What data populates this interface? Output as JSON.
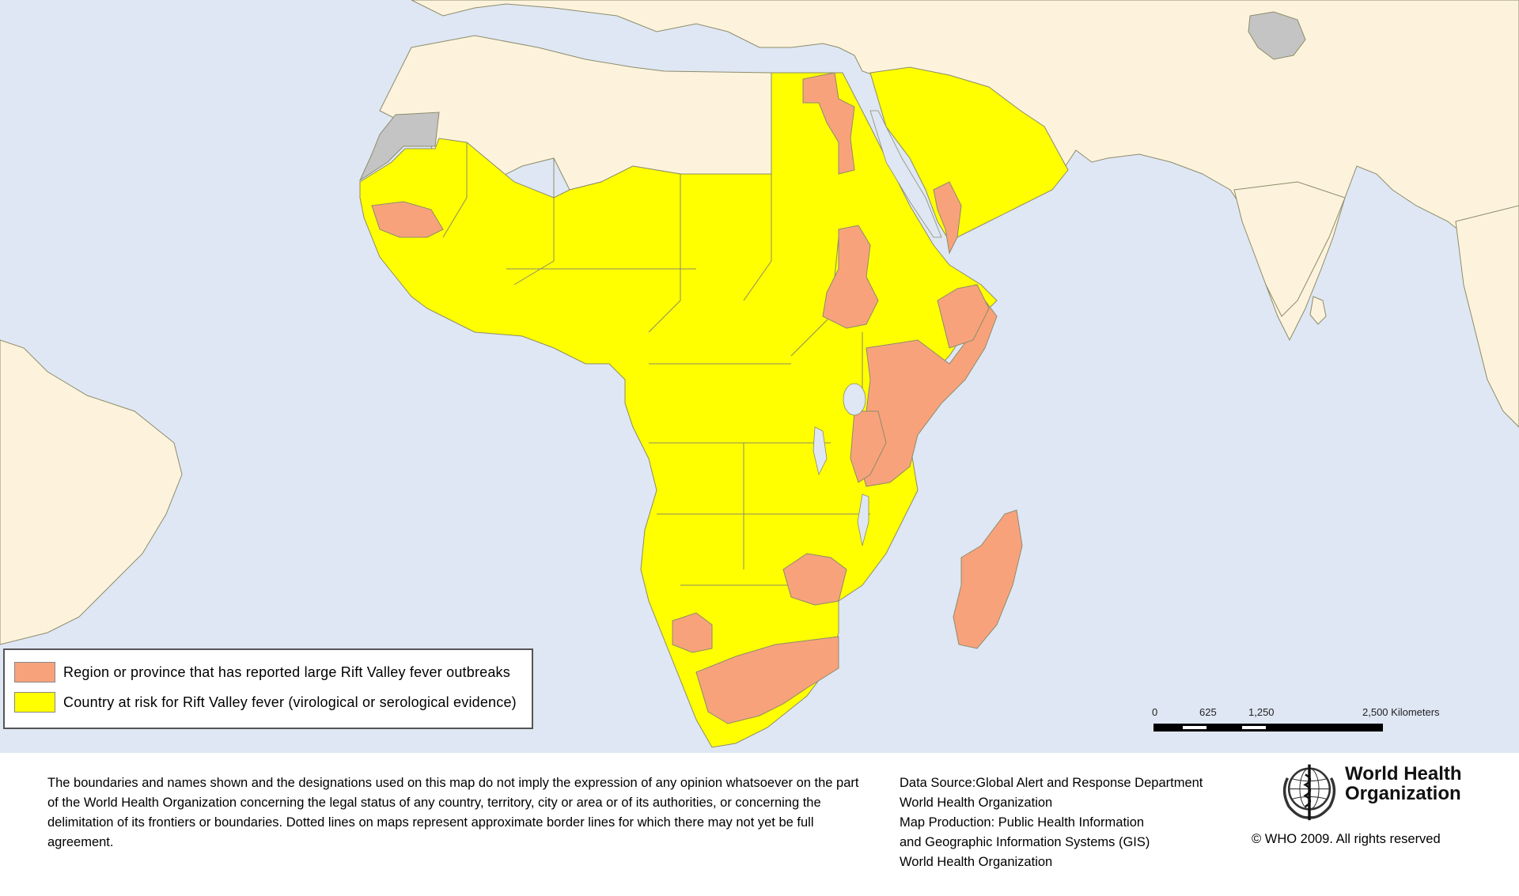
{
  "colors": {
    "ocean": "#dfe7f4",
    "land_other": "#fdf3dc",
    "at_risk": "#ffff00",
    "outbreak": "#f8a27c",
    "no_data": "#c4c4c4",
    "border": "#8c8c6a"
  },
  "legend": {
    "items": [
      {
        "label": "Region or province that has reported large Rift Valley fever outbreaks",
        "color": "#f8a27c"
      },
      {
        "label": "Country at risk for Rift Valley fever (virological or serological evidence)",
        "color": "#ffff00"
      }
    ]
  },
  "scale": {
    "ticks": [
      "0",
      "625",
      "1,250",
      "2,500 Kilometers"
    ]
  },
  "footer": {
    "disclaimer": "The boundaries and names shown and the designations used on this map do not imply the expression of any opinion whatsoever on the part of the World Health Organization concerning the legal status of any country, territory, city or area or of its authorities, or concerning the delimitation of its frontiers or boundaries.  Dotted lines on maps represent approximate border lines for which there may not yet be full agreement.",
    "source_lines": [
      "Data Source:Global Alert and Response Department",
      "World Health Organization",
      "Map Production: Public Health Information",
      "and Geographic Information Systems (GIS)",
      "World Health Organization"
    ],
    "org_name_line1": "World Health",
    "org_name_line2": "Organization",
    "copyright": "© WHO 2009. All rights reserved"
  }
}
